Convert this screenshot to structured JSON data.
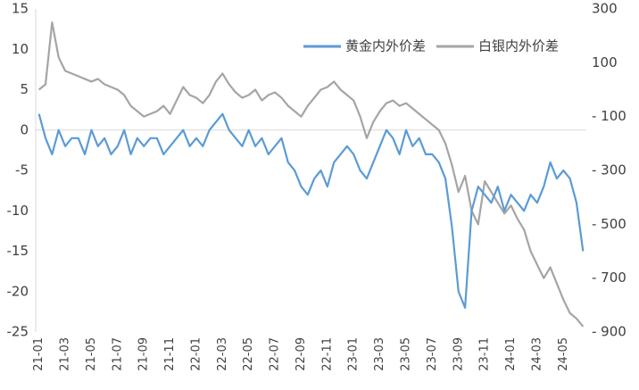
{
  "chart_data": {
    "type": "line",
    "categories": [
      "21-01",
      null,
      null,
      null,
      "21-03",
      null,
      null,
      null,
      "21-05",
      null,
      null,
      null,
      "21-07",
      null,
      null,
      null,
      "21-09",
      null,
      null,
      null,
      "21-11",
      null,
      null,
      null,
      "22-01",
      null,
      null,
      null,
      "22-03",
      null,
      null,
      null,
      "22-05",
      null,
      null,
      null,
      "22-07",
      null,
      null,
      null,
      "22-09",
      null,
      null,
      null,
      "22-11",
      null,
      null,
      null,
      "23-01",
      null,
      null,
      null,
      "23-03",
      null,
      null,
      null,
      "23-05",
      null,
      null,
      null,
      "23-07",
      null,
      null,
      null,
      "23-09",
      null,
      null,
      null,
      "23-11",
      null,
      null,
      null,
      "24-01",
      null,
      null,
      null,
      "24-03",
      null,
      null,
      null,
      "24-05",
      null,
      null,
      null
    ],
    "series": [
      {
        "name": "黄金内外价差",
        "color": "#5b9bd5",
        "values": [
          2,
          -1,
          -3,
          0,
          -2,
          -1,
          -1,
          -3,
          0,
          -2,
          -1,
          -3,
          -2,
          0,
          -3,
          -1,
          -2,
          -1,
          -1,
          -3,
          -2,
          -1,
          0,
          -2,
          -1,
          -2,
          0,
          1,
          2,
          0,
          -1,
          -2,
          0,
          -2,
          -1,
          -3,
          -2,
          -1,
          -4,
          -5,
          -7,
          -8,
          -6,
          -5,
          -7,
          -4,
          -3,
          -2,
          -3,
          -5,
          -6,
          -4,
          -2,
          0,
          -1,
          -3,
          0,
          -2,
          -1,
          -3,
          -3,
          -4,
          -6,
          -12,
          -20,
          -22,
          -10,
          -7,
          -8,
          -9,
          -7,
          -10,
          -8,
          -9,
          -10,
          -8,
          -9,
          -7,
          -4,
          -6,
          -5,
          -6,
          -9,
          -15
        ]
      },
      {
        "name": "白银内外价差",
        "color": "#a5a5a5",
        "axis": "y2",
        "values": [
          0,
          20,
          250,
          120,
          70,
          60,
          50,
          40,
          30,
          40,
          20,
          10,
          0,
          -20,
          -60,
          -80,
          -100,
          -90,
          -80,
          -60,
          -90,
          -40,
          10,
          -20,
          -30,
          -50,
          -20,
          30,
          60,
          20,
          -10,
          -30,
          -20,
          0,
          -40,
          -20,
          -10,
          -30,
          -60,
          -80,
          -100,
          -60,
          -30,
          0,
          10,
          30,
          0,
          -20,
          -40,
          -100,
          -180,
          -120,
          -80,
          -50,
          -40,
          -60,
          -50,
          -70,
          -90,
          -110,
          -130,
          -150,
          -200,
          -280,
          -380,
          -320,
          -450,
          -500,
          -340,
          -380,
          -420,
          -460,
          -430,
          -480,
          -520,
          -600,
          -650,
          -700,
          -660,
          -720,
          -780,
          -830,
          -850,
          -880
        ]
      }
    ],
    "ylim": [
      -25,
      15
    ],
    "yticks": [
      -25,
      -20,
      -15,
      -10,
      -5,
      0,
      5,
      10,
      15
    ],
    "y2lim": [
      -900,
      300
    ],
    "y2ticks": [
      {
        "value": -900,
        "label": "- 900"
      },
      {
        "value": -700,
        "label": "- 700"
      },
      {
        "value": -500,
        "label": "- 500"
      },
      {
        "value": -300,
        "label": "- 300"
      },
      {
        "value": -100,
        "label": "- 100"
      },
      100,
      300
    ],
    "legend": "top-right"
  }
}
